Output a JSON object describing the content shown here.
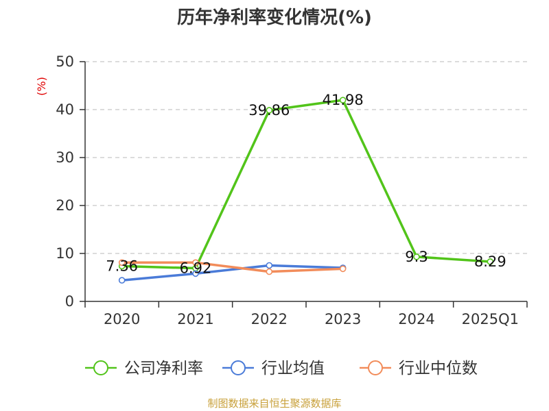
{
  "chart_data": {
    "type": "line",
    "title": "历年净利率变化情况(%)",
    "ylabel": "(%)",
    "categories": [
      "2020",
      "2021",
      "2022",
      "2023",
      "2024",
      "2025Q1"
    ],
    "ylim": [
      0,
      50
    ],
    "yticks": [
      "0",
      "10",
      "20",
      "30",
      "40",
      "50"
    ],
    "grid": true,
    "legend_position": "bottom",
    "series": [
      {
        "name": "公司净利率",
        "color": "#52c41a",
        "values": [
          7.36,
          6.92,
          39.86,
          41.98,
          9.3,
          8.29
        ],
        "labels": [
          "7.36",
          "6.92",
          "39.86",
          "41.98",
          "9.3",
          "8.29"
        ]
      },
      {
        "name": "行业均值",
        "color": "#4a7bd8",
        "values": [
          4.4,
          5.8,
          7.5,
          7.0,
          null,
          null
        ]
      },
      {
        "name": "行业中位数",
        "color": "#f28c5a",
        "values": [
          8.1,
          8.1,
          6.2,
          6.8,
          null,
          null
        ]
      }
    ]
  },
  "footer": {
    "source": "制图数据来自恒生聚源数据库"
  }
}
